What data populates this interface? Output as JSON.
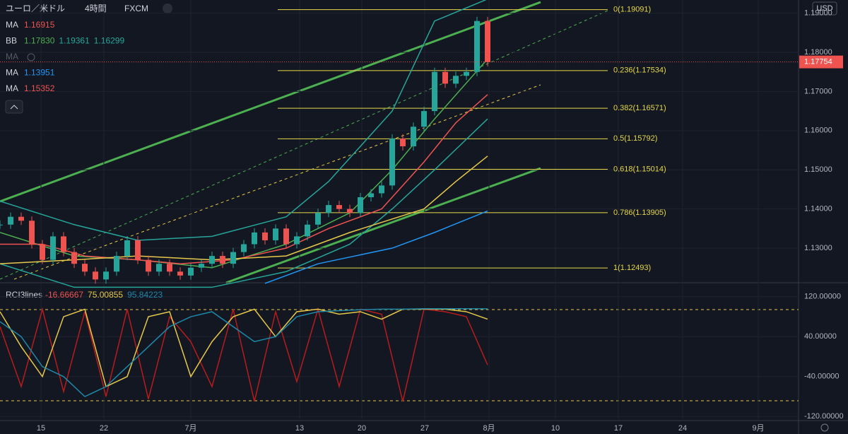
{
  "header": {
    "symbol": "ユーロ／米ドル",
    "interval": "4時間",
    "source": "FXCM",
    "currency": "USD"
  },
  "legend": [
    {
      "name": "MA",
      "values": [
        "1.16915"
      ],
      "color": "#ef5350"
    },
    {
      "name": "BB",
      "values": [
        "1.17830",
        "1.19361",
        "1.16299"
      ],
      "color": "#4caf50"
    },
    {
      "name": "MA",
      "values": [],
      "color": "#555a66"
    },
    {
      "name": "MA",
      "values": [
        "1.13951"
      ],
      "color": "#2196f3"
    },
    {
      "name": "MA",
      "values": [
        "1.15352"
      ],
      "color": "#ef5350"
    }
  ],
  "price_pane": {
    "ylim": [
      1.12116,
      1.19336
    ],
    "ticks": [
      {
        "value": 1.13,
        "label": "1.13000"
      },
      {
        "value": 1.14,
        "label": "1.14000"
      },
      {
        "value": 1.15,
        "label": "1.15000"
      },
      {
        "value": 1.16,
        "label": "1.16000"
      },
      {
        "value": 1.17,
        "label": "1.17000"
      },
      {
        "value": 1.18,
        "label": "1.18000"
      },
      {
        "value": 1.19,
        "label": "1.19000"
      }
    ],
    "current": {
      "value": 1.17754,
      "label": "1.17754"
    },
    "fib": [
      {
        "value": 1.19091,
        "label": "0(1.19091)"
      },
      {
        "value": 1.17534,
        "label": "0.236(1.17534)"
      },
      {
        "value": 1.16571,
        "label": "0.382(1.16571)"
      },
      {
        "value": 1.15792,
        "label": "0.5(1.15792)"
      },
      {
        "value": 1.15014,
        "label": "0.618(1.15014)"
      },
      {
        "value": 1.13905,
        "label": "0.786(1.13905)"
      },
      {
        "value": 1.12493,
        "label": "1(1.12493)"
      }
    ],
    "close": [
      1.136,
      1.138,
      1.137,
      1.131,
      1.127,
      1.133,
      1.129,
      1.126,
      1.124,
      1.122,
      1.124,
      1.128,
      1.132,
      1.127,
      1.124,
      1.126,
      1.124,
      1.123,
      1.125,
      1.126,
      1.128,
      1.126,
      1.129,
      1.131,
      1.134,
      1.132,
      1.135,
      1.131,
      1.133,
      1.136,
      1.139,
      1.141,
      1.14,
      1.139,
      1.143,
      1.144,
      1.146,
      1.158,
      1.156,
      1.161,
      1.165,
      1.175,
      1.172,
      1.174,
      1.175,
      1.188,
      1.1775
    ],
    "lines": [
      {
        "color": "#26a69a",
        "x": [
          0,
          7,
          13,
          20,
          27,
          31,
          37,
          41,
          46
        ],
        "values": [
          1.142,
          1.136,
          1.132,
          1.133,
          1.138,
          1.147,
          1.165,
          1.188,
          1.1936
        ]
      },
      {
        "color": "#26a69a",
        "x": [
          0,
          7,
          20,
          27,
          33,
          37,
          41,
          46
        ],
        "values": [
          1.126,
          1.12,
          1.12,
          1.124,
          1.131,
          1.14,
          1.15,
          1.163
        ]
      },
      {
        "color": "#4caf50",
        "x": [
          0,
          7,
          13,
          20,
          27,
          33,
          37,
          41,
          46
        ],
        "values": [
          1.134,
          1.128,
          1.127,
          1.125,
          1.131,
          1.139,
          1.15,
          1.163,
          1.1783
        ]
      },
      {
        "color": "#ef5350",
        "x": [
          0,
          4,
          8,
          13,
          17,
          22,
          27,
          31,
          36,
          40,
          43,
          46
        ],
        "values": [
          1.131,
          1.131,
          1.128,
          1.127,
          1.126,
          1.127,
          1.13,
          1.135,
          1.14,
          1.152,
          1.162,
          1.1692
        ]
      },
      {
        "color": "#e6c84a",
        "x": [
          0,
          7,
          13,
          20,
          27,
          33,
          40,
          43,
          46
        ],
        "values": [
          1.126,
          1.127,
          1.128,
          1.127,
          1.128,
          1.134,
          1.14,
          1.147,
          1.1535
        ]
      },
      {
        "color": "#2196f3",
        "x": [
          25,
          30,
          37,
          41,
          46
        ],
        "values": [
          1.121,
          1.126,
          1.13,
          1.134,
          1.1395
        ]
      }
    ]
  },
  "rci_pane": {
    "name": "RCI3lines",
    "values": [
      "-16.66667",
      "75.00855",
      "95.84223"
    ],
    "ylim": [
      -121,
      148
    ],
    "ticks": [
      {
        "value": 120,
        "label": "120.00000"
      },
      {
        "value": 40,
        "label": "40.00000"
      },
      {
        "value": -40,
        "label": "-40.00000"
      },
      {
        "value": -120,
        "label": "-120.00000"
      }
    ],
    "lines": [
      {
        "color": "#b71c1c",
        "values": [
          60,
          -60,
          95,
          -70,
          90,
          -80,
          95,
          -85,
          80,
          30,
          -60,
          95,
          -90,
          90,
          -50,
          95,
          -60,
          95,
          85,
          -90,
          95,
          90,
          80,
          -16.66667
        ]
      },
      {
        "color": "#e6c84a",
        "values": [
          90,
          20,
          -40,
          80,
          95,
          -60,
          -40,
          80,
          90,
          -40,
          30,
          80,
          95,
          40,
          90,
          95,
          85,
          90,
          75,
          95,
          95,
          95,
          90,
          75.00855
        ]
      },
      {
        "color": "#1e88a8",
        "values": [
          70,
          40,
          -20,
          -40,
          -80,
          -60,
          -20,
          20,
          60,
          80,
          90,
          60,
          30,
          40,
          80,
          90,
          92,
          94,
          95,
          95,
          96,
          96,
          96,
          95.84223
        ]
      }
    ]
  },
  "time_axis": {
    "labels": [
      "15",
      "22",
      "7月",
      "13",
      "20",
      "27",
      "8月",
      "10",
      "17",
      "24",
      "9月"
    ]
  }
}
